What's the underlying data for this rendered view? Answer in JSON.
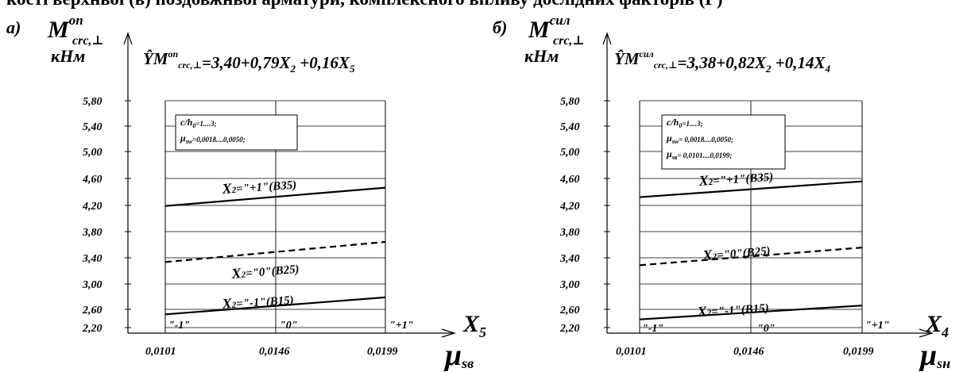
{
  "caption": "кості верхньої (в) поздовжньої арматури, комплексного впливу дослідних факторів (Г)",
  "y_ticks": [
    "5,80",
    "5,40",
    "5,00",
    "4,60",
    "4,20",
    "3,80",
    "3,40",
    "3,00",
    "2,60",
    "2,20"
  ],
  "x_ticks": [
    "0,0101",
    "0,0146",
    "0,0199"
  ],
  "coded_ticks": [
    "\"-1\"",
    "\"0\"",
    "\"+1\""
  ],
  "panels": [
    {
      "letter": "а)",
      "ylabel_main": "M",
      "ylabel_sup": "оп",
      "ylabel_sub": "crc,⊥",
      "ylabel_unit": "кНм",
      "eq_lead": "Ŷ",
      "eq_M": "M",
      "eq_sup": "оп",
      "eq_sub": "crc,⊥",
      "eq_rest": "=3,40+0,79X",
      "eq_s1": "2",
      "eq_rest2": " +0,16X",
      "eq_s2": "5",
      "box_lines": [
        {
          "main": "c/h",
          "sub": "0",
          "rest": "=1....3;"
        },
        {
          "main": "μ",
          "sub": "sw",
          "rest": "=0,0018....0,0050;"
        }
      ],
      "xcoded_main": "X",
      "xcoded_sub": "5",
      "xlabel_main": "μ",
      "xlabel_sub": "sв"
    },
    {
      "letter": "б)",
      "ylabel_main": "M",
      "ylabel_sup": "сил",
      "ylabel_sub": "crc,⊥",
      "ylabel_unit": "кНм",
      "eq_lead": "Ŷ",
      "eq_M": "M",
      "eq_sup": "сил",
      "eq_sub": "crc,⊥",
      "eq_rest": "=3,38+0,82X",
      "eq_s1": "2",
      "eq_rest2": " +0,14X",
      "eq_s2": "4",
      "box_lines": [
        {
          "main": "c/h",
          "sub": "0",
          "rest": "=1....3;"
        },
        {
          "main": "μ",
          "sub": "sw",
          "rest": "= 0,0018....0,0050;"
        },
        {
          "main": "μ",
          "sub": "sв",
          "rest": "= 0,0101....0,0199;"
        }
      ],
      "xcoded_main": "X",
      "xcoded_sub": "4",
      "xlabel_main": "μ",
      "xlabel_sub": "sн"
    }
  ],
  "chart_data": [
    {
      "type": "line",
      "x": [
        -1,
        1
      ],
      "x_ticks": [
        "0,0101",
        "0,0146",
        "0,0199"
      ],
      "coded_ticks": [
        "\"-1\"",
        "\"0\"",
        "\"+1\""
      ],
      "ylim": [
        2.2,
        5.8
      ],
      "y_ticks": [
        5.8,
        5.4,
        5.0,
        4.6,
        4.2,
        3.8,
        3.4,
        3.0,
        2.6,
        2.2
      ],
      "grid": true,
      "series": [
        {
          "name": "X2=\"+1\"(В35)",
          "label_main": "X",
          "label_sub": "2",
          "label_rest": "=\"+1\"(В35)",
          "values": [
            4.13,
            4.42
          ],
          "style": "solid"
        },
        {
          "name": "X2=\"0\"(В25)",
          "label_main": "X",
          "label_sub": "2",
          "label_rest": "=\"0\"(В25)",
          "values": [
            3.24,
            3.56
          ],
          "style": "dashed"
        },
        {
          "name": "X2=\"-1\"(В15)",
          "label_main": "X",
          "label_sub": "2",
          "label_rest": "=\"-1\"(В15)",
          "values": [
            2.41,
            2.68
          ],
          "style": "solid"
        }
      ]
    },
    {
      "type": "line",
      "x": [
        -1,
        1
      ],
      "x_ticks": [
        "0,0101",
        "0,0146",
        "0,0199"
      ],
      "coded_ticks": [
        "\"-1\"",
        "\"0\"",
        "\"+1\""
      ],
      "ylim": [
        2.2,
        5.8
      ],
      "y_ticks": [
        5.8,
        5.4,
        5.0,
        4.6,
        4.2,
        3.8,
        3.4,
        3.0,
        2.6,
        2.2
      ],
      "grid": true,
      "series": [
        {
          "name": "X2=\"+1\"(В35)",
          "label_main": "X",
          "label_sub": "2",
          "label_rest": "=\"+1\"(В35)",
          "values": [
            4.27,
            4.52
          ],
          "style": "solid"
        },
        {
          "name": "X2=\"0\"(В25)",
          "label_main": "X",
          "label_sub": "2",
          "label_rest": "=\"0\"(В25)",
          "values": [
            3.19,
            3.47
          ],
          "style": "dashed"
        },
        {
          "name": "X2=\"-1\"(В15)",
          "label_main": "X",
          "label_sub": "2",
          "label_rest": "=\"-1\"(В15)",
          "values": [
            2.33,
            2.55
          ],
          "style": "solid"
        }
      ]
    }
  ]
}
